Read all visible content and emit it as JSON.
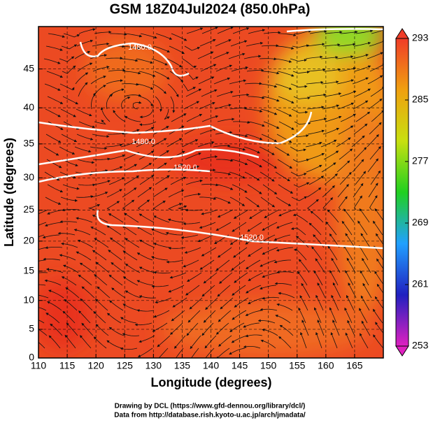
{
  "chart_data": {
    "type": "map",
    "title": "GSM 18Z04Jul2024 (850.0hPa)",
    "x_label": "Longitude (degrees)",
    "y_label": "Latitude  (degrees)",
    "xlim": [
      110,
      170
    ],
    "xticks": [
      110,
      115,
      120,
      125,
      130,
      135,
      140,
      145,
      150,
      155,
      160,
      165
    ],
    "ylim": [
      0,
      50
    ],
    "yticks": [
      0,
      5,
      10,
      15,
      20,
      25,
      30,
      35,
      40,
      45
    ],
    "y_projection": "mercator",
    "grid": true,
    "contour_labels": [
      "1480.0",
      "1480.0",
      "1520.0",
      "1520.0"
    ],
    "colorbar": {
      "lim": [
        253,
        293
      ],
      "ticks": [
        253,
        261,
        269,
        277,
        285,
        293
      ],
      "colors": [
        "#e020c0",
        "#2020c0",
        "#20a0ff",
        "#20d020",
        "#c8e010",
        "#f0a010",
        "#f03c28"
      ]
    },
    "footer": [
      "Drawing by DCL (https://www.gfd-dennou.org/library/dcl/)",
      "Data from http://database.rish.kyoto-u.ac.jp/arch/jmadata/"
    ]
  }
}
